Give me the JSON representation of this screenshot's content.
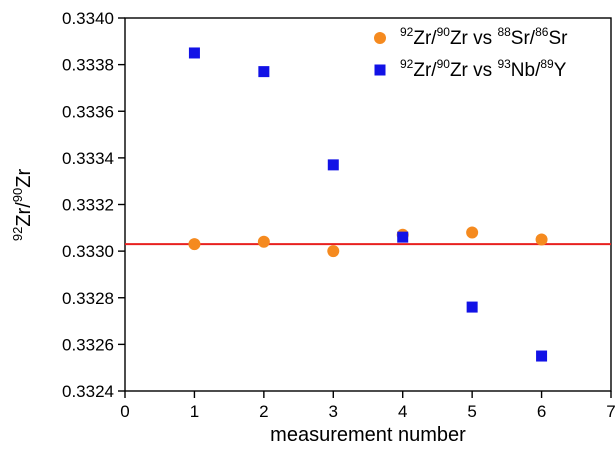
{
  "chart_data": {
    "type": "scatter",
    "xlabel": "measurement number",
    "ylabel": {
      "parts": [
        {
          "text": "92",
          "sup": true
        },
        {
          "text": "Zr/",
          "sup": false
        },
        {
          "text": "90",
          "sup": true
        },
        {
          "text": "Zr",
          "sup": false
        }
      ]
    },
    "xlim": [
      0,
      7
    ],
    "ylim": [
      0.3324,
      0.334
    ],
    "x_ticks": [
      0,
      1,
      2,
      3,
      4,
      5,
      6,
      7
    ],
    "x_tick_labels": [
      "0",
      "1",
      "2",
      "3",
      "4",
      "5",
      "6",
      "7"
    ],
    "y_ticks": [
      0.3324,
      0.3326,
      0.3328,
      0.333,
      0.3332,
      0.3334,
      0.3336,
      0.3338,
      0.334
    ],
    "y_tick_labels": [
      "0.3324",
      "0.3326",
      "0.3328",
      "0.3330",
      "0.3332",
      "0.3334",
      "0.3336",
      "0.3338",
      "0.3340"
    ],
    "grid": false,
    "legend_position": "top-right",
    "reference_line": {
      "y": 0.33303,
      "color": "#e8201f"
    },
    "series": [
      {
        "legend_parts": [
          {
            "text": "92",
            "sup": true
          },
          {
            "text": "Zr/",
            "sup": false
          },
          {
            "text": "90",
            "sup": true
          },
          {
            "text": "Zr vs ",
            "sup": false
          },
          {
            "text": "88",
            "sup": true
          },
          {
            "text": "Sr/",
            "sup": false
          },
          {
            "text": "86",
            "sup": true
          },
          {
            "text": "Sr",
            "sup": false
          }
        ],
        "marker": "circle",
        "color": "#f58a1f",
        "x": [
          1,
          2,
          3,
          4,
          5,
          6
        ],
        "y": [
          0.33303,
          0.33304,
          0.333,
          0.33307,
          0.33308,
          0.33305
        ]
      },
      {
        "legend_parts": [
          {
            "text": "92",
            "sup": true
          },
          {
            "text": "Zr/",
            "sup": false
          },
          {
            "text": "90",
            "sup": true
          },
          {
            "text": "Zr vs ",
            "sup": false
          },
          {
            "text": "93",
            "sup": true
          },
          {
            "text": "Nb/",
            "sup": false
          },
          {
            "text": "89",
            "sup": true
          },
          {
            "text": "Y",
            "sup": false
          }
        ],
        "marker": "square",
        "color": "#1212e6",
        "x": [
          1,
          2,
          3,
          4,
          5,
          6
        ],
        "y": [
          0.33385,
          0.33377,
          0.33337,
          0.33306,
          0.33276,
          0.33255
        ]
      }
    ]
  }
}
